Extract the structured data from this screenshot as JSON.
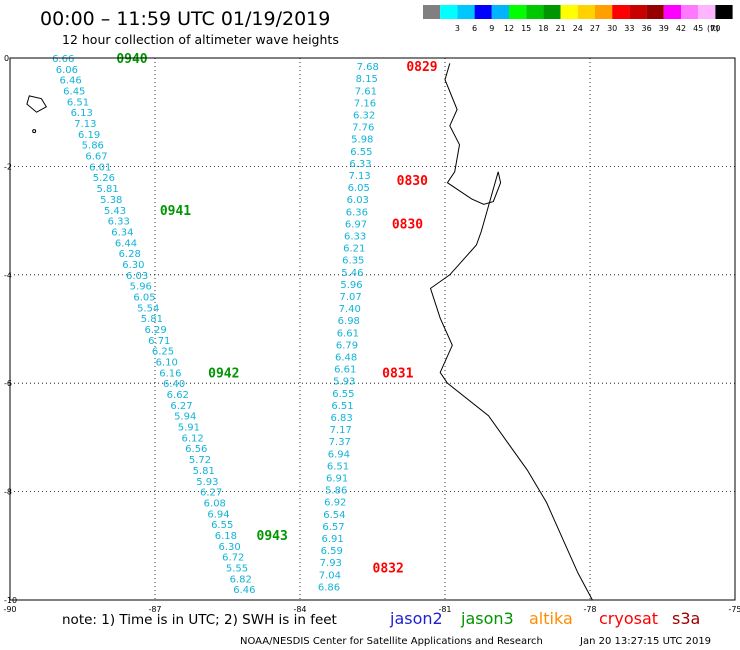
{
  "header": {
    "title": "00:00 – 11:59 UTC 01/19/2019",
    "subtitle": "12 hour collection of altimeter wave heights"
  },
  "legend": {
    "unit": "(ft)",
    "bins": [
      {
        "color": "#808080",
        "label": ""
      },
      {
        "color": "#00ffff",
        "label": "3"
      },
      {
        "color": "#00c8ff",
        "label": "6"
      },
      {
        "color": "#0000ff",
        "label": "9"
      },
      {
        "color": "#00b4ff",
        "label": "12"
      },
      {
        "color": "#00ff00",
        "label": "15"
      },
      {
        "color": "#00c800",
        "label": "18"
      },
      {
        "color": "#009600",
        "label": "21"
      },
      {
        "color": "#ffff00",
        "label": "24"
      },
      {
        "color": "#ffd200",
        "label": "27"
      },
      {
        "color": "#ffa000",
        "label": "30"
      },
      {
        "color": "#ff0000",
        "label": "33"
      },
      {
        "color": "#c80000",
        "label": "36"
      },
      {
        "color": "#960000",
        "label": "39"
      },
      {
        "color": "#ff00ff",
        "label": "42"
      },
      {
        "color": "#ff78ff",
        "label": "45"
      },
      {
        "color": "#ffb4ff",
        "label": "70"
      },
      {
        "color": "#000000",
        "label": ""
      }
    ]
  },
  "map": {
    "lon_range": [
      -90,
      -75
    ],
    "lat_range": [
      -10,
      0
    ],
    "lon_ticks": [
      {
        "value": -90,
        "label": "-90"
      },
      {
        "value": -87,
        "label": "-87"
      },
      {
        "value": -84,
        "label": "-84"
      },
      {
        "value": -81,
        "label": "-81"
      },
      {
        "value": -78,
        "label": "-78"
      },
      {
        "value": -75,
        "label": "-75"
      }
    ],
    "lat_ticks": [
      {
        "value": 0,
        "label": "0"
      },
      {
        "value": -2,
        "label": "-2"
      },
      {
        "value": -4,
        "label": "-4"
      },
      {
        "value": -6,
        "label": "-6"
      },
      {
        "value": -8,
        "label": "-8"
      },
      {
        "value": -10,
        "label": "-10"
      }
    ],
    "coastline": [
      [
        -80.9,
        -0.1
      ],
      [
        -81.0,
        -0.4
      ],
      [
        -80.75,
        -0.95
      ],
      [
        -80.9,
        -1.25
      ],
      [
        -80.7,
        -1.6
      ],
      [
        -80.8,
        -2.1
      ],
      [
        -80.95,
        -2.3
      ],
      [
        -80.45,
        -2.6
      ],
      [
        -80.2,
        -2.7
      ],
      [
        -80.0,
        -2.65
      ],
      [
        -79.85,
        -2.3
      ],
      [
        -79.9,
        -2.1
      ],
      [
        -80.25,
        -3.2
      ],
      [
        -80.35,
        -3.45
      ],
      [
        -80.9,
        -4.0
      ],
      [
        -81.3,
        -4.25
      ],
      [
        -81.1,
        -4.8
      ],
      [
        -80.85,
        -5.3
      ],
      [
        -81.1,
        -5.8
      ],
      [
        -80.95,
        -6.0
      ],
      [
        -80.1,
        -6.6
      ],
      [
        -79.7,
        -7.1
      ],
      [
        -79.3,
        -7.6
      ],
      [
        -78.9,
        -8.2
      ],
      [
        -78.55,
        -8.9
      ],
      [
        -78.25,
        -9.5
      ],
      [
        -77.95,
        -10.0
      ]
    ],
    "galapagos_island": [
      [
        -89.6,
        -0.7
      ],
      [
        -89.35,
        -0.75
      ],
      [
        -89.25,
        -0.9
      ],
      [
        -89.45,
        -1.0
      ],
      [
        -89.65,
        -0.85
      ]
    ],
    "galapagos_islet": [
      -89.5,
      -1.35
    ]
  },
  "tracks": [
    {
      "satellite": "jason3",
      "color": "#12b4d8",
      "start": [
        -88.9,
        0.0
      ],
      "end": [
        -85.15,
        -9.8
      ],
      "values": [
        "6.66",
        "6.06",
        "6.46",
        "6.45",
        "6.51",
        "6.13",
        "7.13",
        "6.19",
        "5.86",
        "6.67",
        "6.01",
        "5.26",
        "5.81",
        "5.38",
        "5.43",
        "6.33",
        "6.34",
        "6.44",
        "6.28",
        "6.30",
        "6.03",
        "5.96",
        "6.05",
        "5.54",
        "5.81",
        "6.29",
        "6.71",
        "6.25",
        "6.10",
        "6.16",
        "6.40",
        "6.62",
        "6.27",
        "5.94",
        "5.91",
        "6.12",
        "6.56",
        "5.72",
        "5.81",
        "5.93",
        "6.27",
        "6.08",
        "6.94",
        "6.55",
        "6.18",
        "6.30",
        "6.72",
        "5.55",
        "6.82",
        "6.46"
      ],
      "times": [
        {
          "label": "0940",
          "lon": -87.8,
          "lat": 0.0
        },
        {
          "label": "0941",
          "lon": -86.9,
          "lat": -2.8
        },
        {
          "label": "0942",
          "lon": -85.9,
          "lat": -5.8
        },
        {
          "label": "0943",
          "lon": -84.9,
          "lat": -8.8
        }
      ]
    },
    {
      "satellite": "cryosat",
      "color": "#12b4d8",
      "start": [
        -82.6,
        -0.15
      ],
      "end": [
        -83.4,
        -9.75
      ],
      "values": [
        "7.68",
        "8.15",
        "7.61",
        "7.16",
        "6.32",
        "7.76",
        "5.98",
        "6.55",
        "6.33",
        "7.13",
        "6.05",
        "6.03",
        "6.36",
        "6.97",
        "6.33",
        "6.21",
        "6.35",
        "5.46",
        "5.96",
        "7.07",
        "7.40",
        "6.98",
        "6.61",
        "6.79",
        "6.48",
        "6.61",
        "5.93",
        "6.55",
        "6.51",
        "6.83",
        "7.17",
        "7.37",
        "6.94",
        "6.51",
        "6.91",
        "5.86",
        "6.92",
        "6.54",
        "6.57",
        "6.91",
        "6.59",
        "7.93",
        "7.04",
        "6.86"
      ],
      "times": [
        {
          "label": "0829",
          "lon": -81.8,
          "lat": -0.15
        },
        {
          "label": "0830",
          "lon": -82.0,
          "lat": -2.25
        },
        {
          "label": "0830",
          "lon": -82.1,
          "lat": -3.05
        },
        {
          "label": "0831",
          "lon": -82.3,
          "lat": -5.8
        },
        {
          "label": "0832",
          "lon": -82.5,
          "lat": -9.4
        }
      ]
    }
  ],
  "note": "note: 1) Time is in UTC; 2) SWH is in feet",
  "satellites": [
    {
      "label": "jason2",
      "color": "#1f1fd2"
    },
    {
      "label": "jason3",
      "color": "#009600"
    },
    {
      "label": "altika",
      "color": "#ff8c00"
    },
    {
      "label": "cryosat",
      "color": "#ff0000"
    },
    {
      "label": "s3a",
      "color": "#a00000"
    }
  ],
  "footer": {
    "credit": "NOAA/NESDIS Center for Satellite Applications and Research",
    "timestamp": "Jan 20 13:27:15 UTC 2019"
  }
}
